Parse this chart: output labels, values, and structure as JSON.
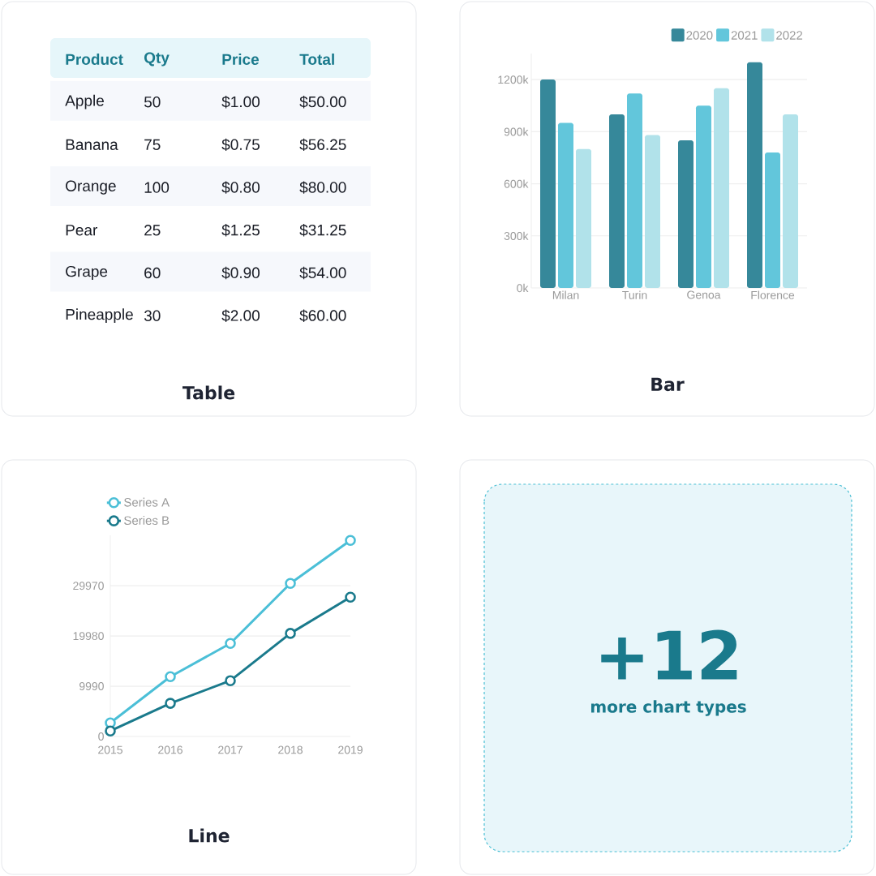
{
  "chart_data": [
    {
      "type": "other",
      "title": "Table",
      "annotations": [
        "Product",
        "Qty",
        "Price",
        "Total",
        "Apple",
        "50",
        "$1.00",
        "$50.00",
        "Banana",
        "75",
        "$0.75",
        "$56.25",
        "Orange",
        "100",
        "$0.80",
        "$80.00",
        "Pear",
        "25",
        "$1.25",
        "$31.25",
        "Grape",
        "60",
        "$0.90",
        "$54.00",
        "Pineapple",
        "30",
        "$2.00",
        "$60.00"
      ]
    },
    {
      "type": "bar",
      "title": "Bar",
      "categories": [
        "Milan",
        "Turin",
        "Genoa",
        "Florence"
      ],
      "series": [
        {
          "name": "2020",
          "color": "#36889a",
          "values": [
            1200000,
            1000000,
            850000,
            1300000
          ]
        },
        {
          "name": "2021",
          "color": "#62c6db",
          "values": [
            950000,
            1120000,
            1050000,
            780000
          ]
        },
        {
          "name": "2022",
          "color": "#b1e2ea",
          "values": [
            800000,
            880000,
            1150000,
            1000000
          ]
        }
      ],
      "ylim": [
        0,
        1350000
      ],
      "yticks": [
        {
          "value": 0,
          "label": "0k"
        },
        {
          "value": 300000,
          "label": "300k"
        },
        {
          "value": 600000,
          "label": "600k"
        },
        {
          "value": 900000,
          "label": "900k"
        },
        {
          "value": 1200000,
          "label": "1200k"
        }
      ],
      "grid": "y",
      "legend": "top right"
    },
    {
      "type": "line",
      "title": "Line",
      "x": [
        2015,
        2016,
        2017,
        2018,
        2019
      ],
      "series": [
        {
          "name": "Series A",
          "color": "#4bbfd7",
          "values": [
            2700,
            11900,
            18500,
            30450,
            39000
          ]
        },
        {
          "name": "Series B",
          "color": "#1a7a8c",
          "values": [
            1100,
            6600,
            11100,
            20500,
            27700
          ]
        }
      ],
      "xlim": [
        2015,
        2019
      ],
      "xticks": [
        2015,
        2016,
        2017,
        2018,
        2019
      ],
      "ylim": [
        0,
        40000
      ],
      "yticks": [
        0,
        9990,
        19980,
        29970
      ],
      "grid": "y",
      "legend": "top left",
      "marker": "circle",
      "line_style": "solid"
    },
    {
      "type": "other",
      "title": "+12",
      "subtitle": "more chart types"
    }
  ]
}
